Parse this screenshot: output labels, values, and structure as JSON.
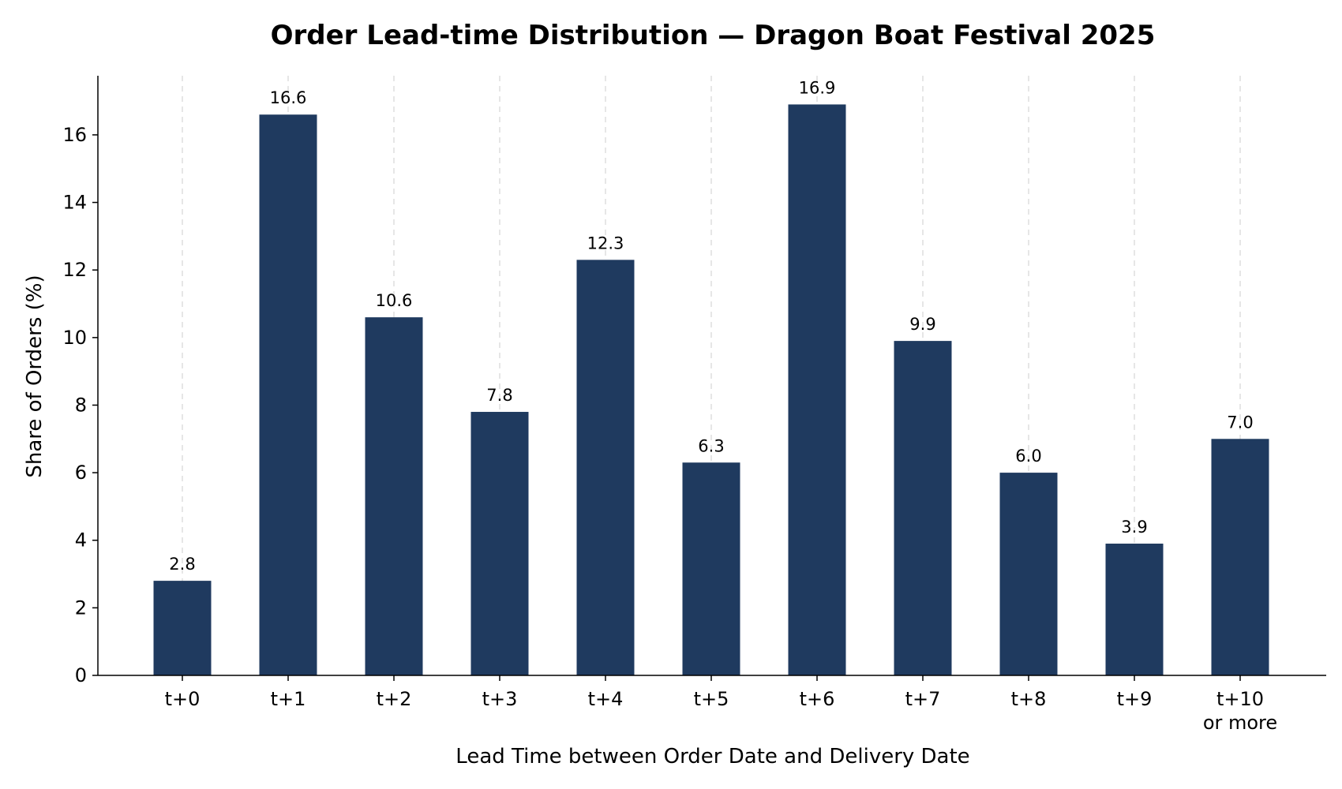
{
  "chart_data": {
    "type": "bar",
    "title": "Order Lead-time Distribution — Dragon Boat Festival 2025",
    "xlabel": "Lead Time between Order Date and Delivery Date",
    "ylabel": "Share of Orders (%)",
    "categories": [
      [
        "t+0"
      ],
      [
        "t+1"
      ],
      [
        "t+2"
      ],
      [
        "t+3"
      ],
      [
        "t+4"
      ],
      [
        "t+5"
      ],
      [
        "t+6"
      ],
      [
        "t+7"
      ],
      [
        "t+8"
      ],
      [
        "t+9"
      ],
      [
        "t+10",
        "or more"
      ]
    ],
    "values": [
      2.8,
      16.6,
      10.6,
      7.8,
      12.3,
      6.3,
      16.9,
      9.9,
      6.0,
      3.9,
      7.0
    ],
    "data_labels": [
      "2.8",
      "16.6",
      "10.6",
      "7.8",
      "12.3",
      "6.3",
      "16.9",
      "9.9",
      "6.0",
      "3.9",
      "7.0"
    ],
    "yticks": [
      0,
      2,
      4,
      6,
      8,
      10,
      12,
      14,
      16
    ],
    "ylim": [
      0,
      17.75
    ],
    "grid": "x-dashed",
    "bar_color": "#1f3a5f"
  }
}
